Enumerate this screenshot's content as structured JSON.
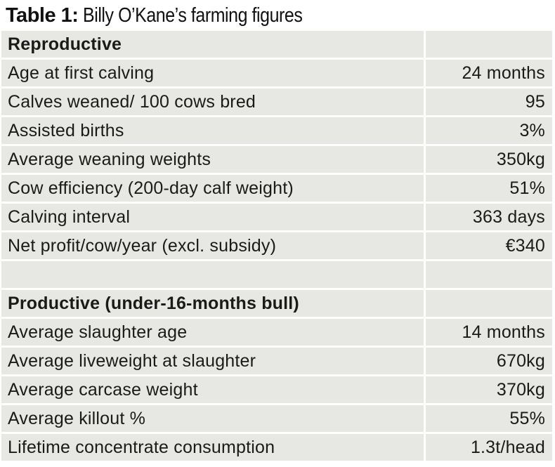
{
  "title": {
    "label": "Table 1:",
    "text": "Billy O’Kane’s farming figures"
  },
  "sections": [
    {
      "heading": "Reproductive",
      "rows": [
        {
          "label": "Age at first calving",
          "value": "24 months"
        },
        {
          "label": "Calves weaned/ 100 cows bred",
          "value": "95"
        },
        {
          "label": "Assisted births",
          "value": "3%"
        },
        {
          "label": "Average weaning weights",
          "value": "350kg"
        },
        {
          "label": "Cow efficiency (200-day calf weight)",
          "value": "51%"
        },
        {
          "label": "Calving interval",
          "value": "363 days"
        },
        {
          "label": "Net profit/cow/year (excl. subsidy)",
          "value": "€340"
        }
      ]
    },
    {
      "heading": "Productive (under-16-months bull)",
      "rows": [
        {
          "label": "Average slaughter age",
          "value": "14 months"
        },
        {
          "label": "Average liveweight at slaughter",
          "value": "670kg"
        },
        {
          "label": "Average carcase weight",
          "value": "370kg"
        },
        {
          "label": "Average killout %",
          "value": "55%"
        },
        {
          "label": "Lifetime concentrate consumption",
          "value": "1.3t/head"
        }
      ]
    }
  ]
}
